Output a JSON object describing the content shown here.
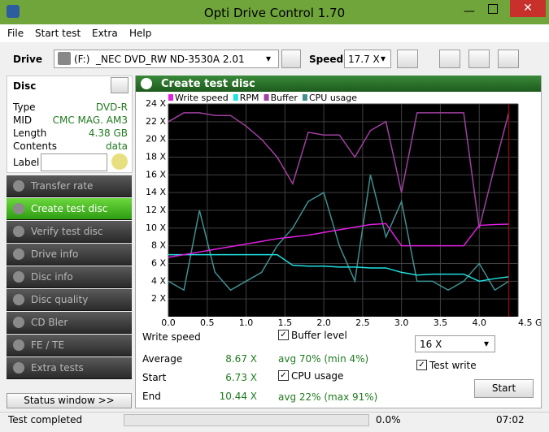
{
  "window": {
    "title": "Opti Drive Control 1.70"
  },
  "menu": [
    "File",
    "Start test",
    "Extra",
    "Help"
  ],
  "toolbar": {
    "drive_label": "Drive",
    "drive": "(F:)  _NEC DVD_RW ND-3530A 2.01",
    "speed_label": "Speed",
    "speed": "17.7 X"
  },
  "disc": {
    "title": "Disc",
    "rows": [
      [
        "Type",
        "DVD-R"
      ],
      [
        "MID",
        "CMC MAG. AM3"
      ],
      [
        "Length",
        "4.38 GB"
      ],
      [
        "Contents",
        "data"
      ]
    ],
    "label": "Label"
  },
  "nav": [
    "Transfer rate",
    "Create test disc",
    "Verify test disc",
    "Drive info",
    "Disc info",
    "Disc quality",
    "CD Bler",
    "FE / TE",
    "Extra tests"
  ],
  "status_window": "Status window >>",
  "panel_title": "Create test disc",
  "chart_data": {
    "type": "line",
    "x": [
      0,
      0.2,
      0.4,
      0.6,
      0.8,
      1.0,
      1.2,
      1.4,
      1.6,
      1.8,
      2.0,
      2.2,
      2.4,
      2.6,
      2.8,
      3.0,
      3.2,
      3.4,
      3.6,
      3.8,
      4.0,
      4.2,
      4.38
    ],
    "series": [
      {
        "name": "Write speed",
        "color": "#e020e0",
        "values": [
          6.7,
          7.0,
          7.3,
          7.6,
          7.9,
          8.2,
          8.5,
          8.8,
          9.0,
          9.2,
          9.5,
          9.8,
          10.1,
          10.4,
          10.5,
          8.0,
          8.0,
          8.0,
          8.0,
          8.0,
          10.3,
          10.4,
          10.44
        ]
      },
      {
        "name": "RPM",
        "color": "#20e0e0",
        "values": [
          7.0,
          7.0,
          7.0,
          7.0,
          7.0,
          7.0,
          7.0,
          7.0,
          5.8,
          5.7,
          5.7,
          5.6,
          5.6,
          5.5,
          5.5,
          5.0,
          4.7,
          4.8,
          4.8,
          4.8,
          4.0,
          4.3,
          4.5
        ]
      },
      {
        "name": "Buffer",
        "color": "#a040a0",
        "values": [
          22,
          23,
          23,
          22.7,
          22.7,
          21.5,
          20,
          18,
          15,
          20.8,
          20.5,
          20.5,
          18,
          21,
          22,
          14,
          23,
          23,
          23,
          23,
          10,
          17,
          23
        ]
      },
      {
        "name": "CPU usage",
        "color": "#409090",
        "values": [
          4,
          3,
          12,
          5,
          3,
          4,
          5,
          8,
          10,
          13,
          14,
          8,
          4,
          16,
          9,
          13,
          4,
          4,
          3,
          4,
          6,
          3,
          4
        ]
      }
    ],
    "xlim": [
      0,
      4.5
    ],
    "ylim": [
      0,
      24
    ],
    "xticks": [
      {
        "value": 0,
        "label": "0.0"
      },
      {
        "value": 0.5,
        "label": "0.5"
      },
      {
        "value": 1,
        "label": "1.0"
      },
      {
        "value": 1.5,
        "label": "1.5"
      },
      {
        "value": 2,
        "label": "2.0"
      },
      {
        "value": 2.5,
        "label": "2.5"
      },
      {
        "value": 3,
        "label": "3.0"
      },
      {
        "value": 3.5,
        "label": "3.5"
      },
      {
        "value": 4,
        "label": "4.0"
      },
      {
        "value": 4.5,
        "label": "4.5 GB"
      }
    ],
    "yticks": [
      {
        "value": 2,
        "label": "2 X"
      },
      {
        "value": 4,
        "label": "4 X"
      },
      {
        "value": 6,
        "label": "6 X"
      },
      {
        "value": 8,
        "label": "8 X"
      },
      {
        "value": 10,
        "label": "10 X"
      },
      {
        "value": 12,
        "label": "12 X"
      },
      {
        "value": 14,
        "label": "14 X"
      },
      {
        "value": 16,
        "label": "16 X"
      },
      {
        "value": 18,
        "label": "18 X"
      },
      {
        "value": 20,
        "label": "20 X"
      },
      {
        "value": 22,
        "label": "22 X"
      },
      {
        "value": 24,
        "label": "24 X"
      }
    ],
    "grid": true,
    "marker_x": 4.38,
    "marker_color": "#c00000"
  },
  "stats": {
    "heading": "Write speed",
    "rows": [
      [
        "Average",
        "8.67 X"
      ],
      [
        "Start",
        "6.73 X"
      ],
      [
        "End",
        "10.44 X"
      ]
    ],
    "buffer_level": "Buffer level",
    "buffer_avg": "avg 70% (min 4%)",
    "cpu_usage": "CPU usage",
    "cpu_avg": "avg 22% (max 91%)",
    "speed": "16 X",
    "test_write": "Test write",
    "start": "Start"
  },
  "status_bar": {
    "message": "Test completed",
    "progress": "0.0%",
    "time": "07:02"
  }
}
